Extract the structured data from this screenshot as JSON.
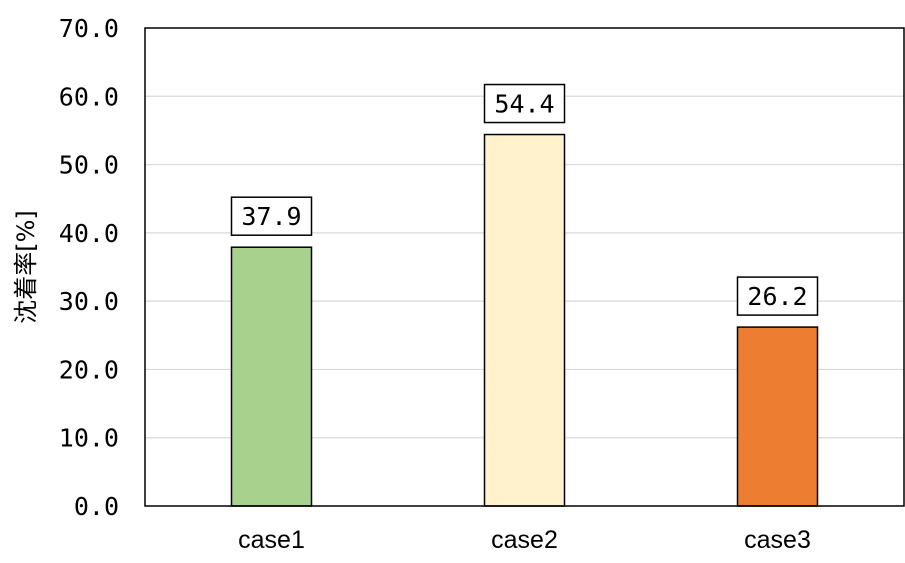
{
  "chart_data": {
    "type": "bar",
    "title": "",
    "xlabel": "",
    "ylabel": "沈着率[%]",
    "categories": [
      "case1",
      "case2",
      "case3"
    ],
    "values": [
      37.9,
      54.4,
      26.2
    ],
    "value_labels": [
      "37.9",
      "54.4",
      "26.2"
    ],
    "ylim": [
      0,
      70
    ],
    "yticks": [
      0,
      10,
      20,
      30,
      40,
      50,
      60,
      70
    ],
    "ytick_labels": [
      "0.0",
      "10.0",
      "20.0",
      "30.0",
      "40.0",
      "50.0",
      "60.0",
      "70.0"
    ],
    "bar_colors": [
      "#a9d18e",
      "#fff2cc",
      "#ed7d31"
    ],
    "grid": true,
    "legend": "none"
  }
}
